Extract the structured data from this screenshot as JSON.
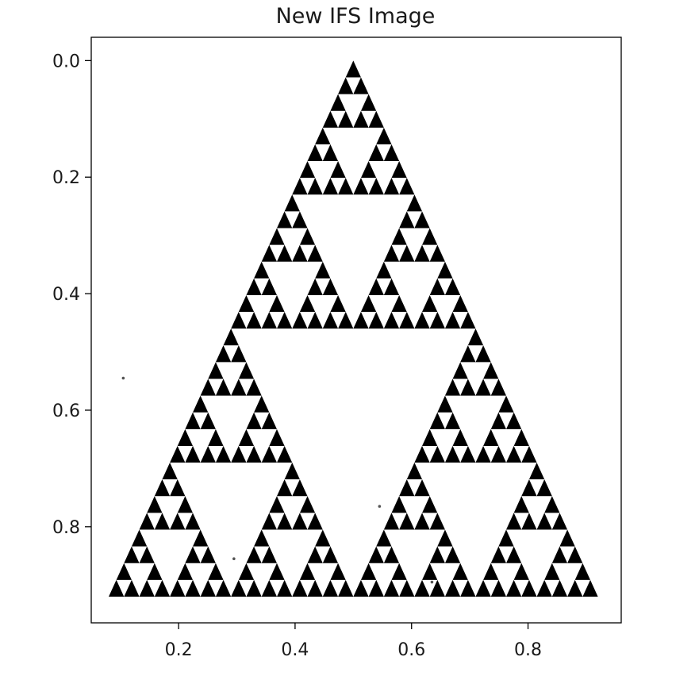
{
  "figure": {
    "title": "New IFS Image"
  },
  "chart_data": {
    "type": "scatter",
    "title": "New IFS Image",
    "xlabel": "",
    "ylabel": "",
    "xlim": [
      0.05,
      0.96
    ],
    "ylim": [
      0.965,
      -0.04
    ],
    "y_axis_inverted": true,
    "grid": false,
    "marker_color": "#000000",
    "xticks": [
      0.2,
      0.4,
      0.6,
      0.8
    ],
    "xtick_labels": [
      "0.2",
      "0.4",
      "0.6",
      "0.8"
    ],
    "yticks": [
      0.0,
      0.2,
      0.4,
      0.6,
      0.8
    ],
    "ytick_labels": [
      "0.0",
      "0.2",
      "0.4",
      "0.6",
      "0.8"
    ],
    "fractal": {
      "kind": "sierpinski-triangle",
      "apex": [
        0.5,
        0.0
      ],
      "base_left": [
        0.08,
        0.92
      ],
      "base_right": [
        0.92,
        0.92
      ],
      "depth": 5
    },
    "stray_points": [
      {
        "x": 0.105,
        "y": 0.545
      },
      {
        "x": 0.295,
        "y": 0.855
      },
      {
        "x": 0.545,
        "y": 0.765
      },
      {
        "x": 0.635,
        "y": 0.895
      }
    ]
  }
}
